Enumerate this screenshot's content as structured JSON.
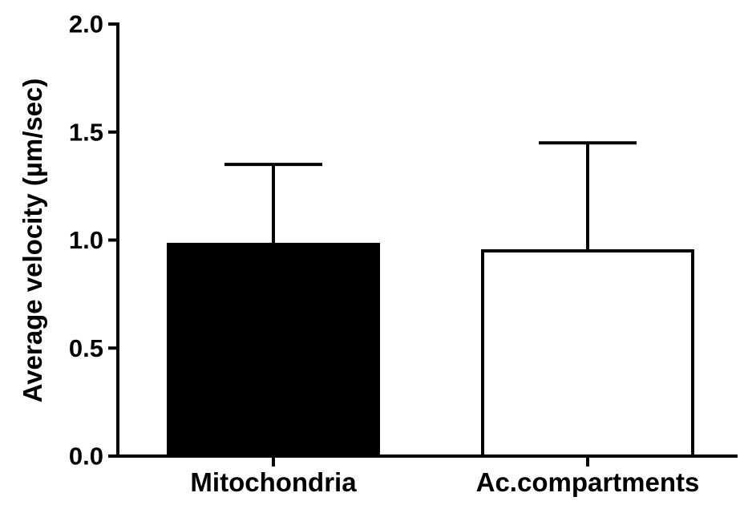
{
  "chart_data": {
    "type": "bar",
    "title": "",
    "xlabel": "",
    "ylabel": "Average velocity (µm/sec)",
    "categories": [
      "Mitochondria",
      "Ac.compartments"
    ],
    "series": [
      {
        "values": [
          0.98,
          0.95
        ],
        "error_upper": [
          0.37,
          0.5
        ]
      }
    ],
    "bar_fills": [
      "#000000",
      "#ffffff"
    ],
    "bar_stroke": "#000000",
    "ylim": [
      0,
      2.0
    ],
    "yticks": [
      0.0,
      0.5,
      1.0,
      1.5,
      2.0
    ],
    "ytick_labels": [
      "0.0",
      "0.5",
      "1.0",
      "1.5",
      "2.0"
    ],
    "grid": false,
    "legend": "none"
  }
}
